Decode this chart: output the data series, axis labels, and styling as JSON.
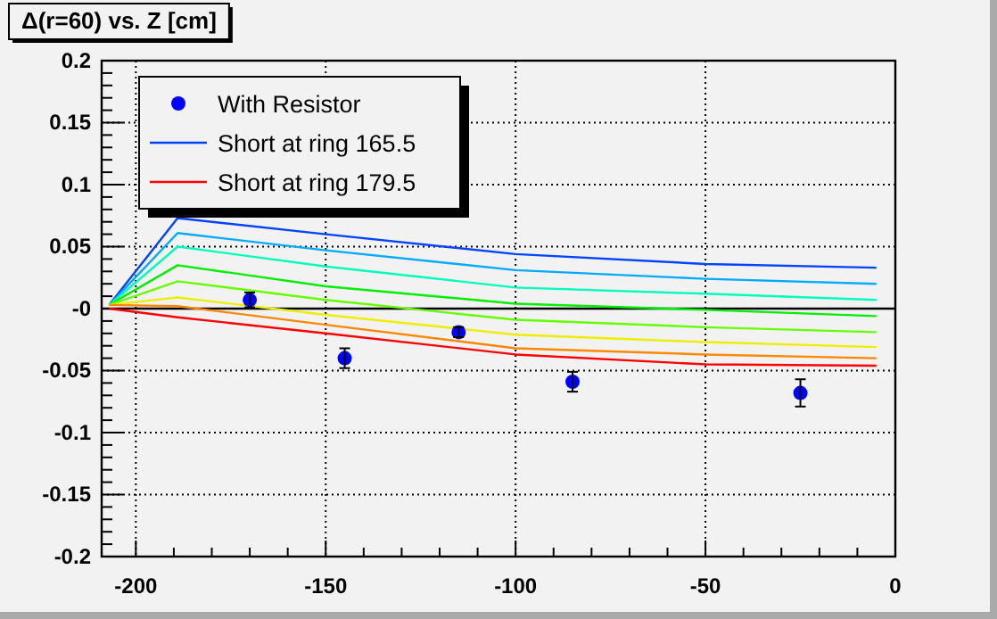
{
  "chart_data": {
    "type": "line",
    "title": "Δ(r=60) vs. Z [cm]",
    "xlim": [
      -209,
      0
    ],
    "xticks": [
      -200,
      -150,
      -100,
      -50,
      0
    ],
    "ylim": [
      -0.2,
      0.2
    ],
    "yticks": [
      -0.2,
      -0.15,
      -0.1,
      -0.05,
      {
        "value": 0,
        "label": "-0"
      },
      0.05,
      0.1,
      0.15,
      0.2
    ],
    "grid": true,
    "legend": "top left",
    "ref_lines": [
      {
        "axis": "y",
        "value": 0,
        "color": "#000000"
      }
    ],
    "series": [
      {
        "name": "Short at ring 165.5",
        "color": "#0044ff",
        "x": [
          -207,
          -189,
          -150,
          -100,
          -50,
          -5
        ],
        "values": [
          0.003,
          0.073,
          0.06,
          0.044,
          0.036,
          0.033
        ]
      },
      {
        "color": "#00aaff",
        "x": [
          -207,
          -189,
          -150,
          -100,
          -50,
          -5
        ],
        "values": [
          0.003,
          0.061,
          0.047,
          0.031,
          0.024,
          0.02
        ]
      },
      {
        "color": "#00ffbb",
        "x": [
          -207,
          -189,
          -150,
          -100,
          -50,
          -5
        ],
        "values": [
          0.003,
          0.05,
          0.034,
          0.017,
          0.012,
          0.007
        ]
      },
      {
        "color": "#00ee00",
        "x": [
          -207,
          -189,
          -150,
          -100,
          -50,
          -5
        ],
        "values": [
          0.003,
          0.035,
          0.018,
          0.004,
          -0.001,
          -0.006
        ]
      },
      {
        "color": "#66ff00",
        "x": [
          -207,
          -189,
          -150,
          -100,
          -50,
          -5
        ],
        "values": [
          0.003,
          0.022,
          0.007,
          -0.009,
          -0.015,
          -0.019
        ]
      },
      {
        "color": "#eeee00",
        "x": [
          -207,
          -189,
          -150,
          -100,
          -50,
          -5
        ],
        "values": [
          0.003,
          0.009,
          -0.005,
          -0.021,
          -0.027,
          -0.031
        ]
      },
      {
        "color": "#ff8800",
        "x": [
          -207,
          -189,
          -150,
          -100,
          -50,
          -5
        ],
        "values": [
          0.003,
          0.002,
          -0.013,
          -0.032,
          -0.037,
          -0.04
        ]
      },
      {
        "name": "Short at ring 179.5",
        "color": "#ff0000",
        "x": [
          -207,
          -189,
          -150,
          -100,
          -50,
          -5
        ],
        "values": [
          0,
          -0.007,
          -0.02,
          -0.037,
          -0.045,
          -0.046
        ]
      },
      {
        "type": "scatter",
        "name": "With Resistor",
        "color": "#0000ff",
        "marker": "circle",
        "x": [
          -170,
          -145,
          -115,
          -85,
          -25
        ],
        "values": [
          0.007,
          -0.04,
          -0.019,
          -0.059,
          -0.068
        ],
        "errors": [
          0.006,
          0.008,
          0.004,
          0.008,
          0.011
        ]
      }
    ]
  }
}
